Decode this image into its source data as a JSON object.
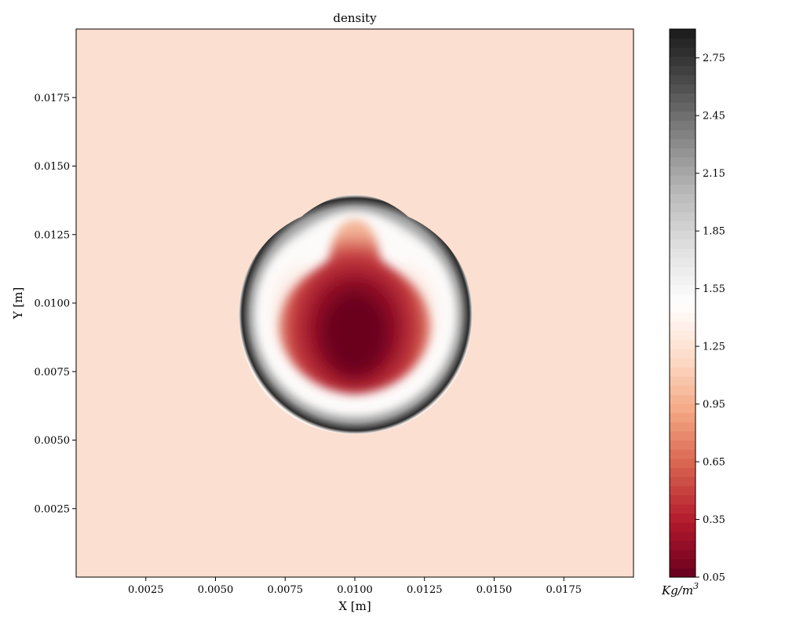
{
  "chart_data": {
    "type": "heatmap",
    "title": "density",
    "xlabel": "X [m]",
    "ylabel": "Y [m]",
    "xlim": [
      0.0,
      0.02
    ],
    "ylim": [
      0.0,
      0.02
    ],
    "x_ticks": [
      0.0025,
      0.005,
      0.0075,
      0.01,
      0.0125,
      0.015,
      0.0175
    ],
    "x_tick_labels": [
      "0.0025",
      "0.0050",
      "0.0075",
      "0.0100",
      "0.0125",
      "0.0150",
      "0.0175"
    ],
    "y_ticks": [
      0.0025,
      0.005,
      0.0075,
      0.01,
      0.0125,
      0.015,
      0.0175
    ],
    "y_tick_labels": [
      "0.0025",
      "0.0050",
      "0.0075",
      "0.0100",
      "0.0125",
      "0.0150",
      "0.0175"
    ],
    "background_value": 1.2,
    "colormap": "RdGy",
    "colorbar": {
      "unit_label": "Kg/m",
      "unit_exponent": "3",
      "range": [
        0.05,
        2.9
      ],
      "levels": 60,
      "ticks": [
        0.05,
        0.35,
        0.65,
        0.95,
        1.25,
        1.55,
        1.85,
        2.15,
        2.45,
        2.75
      ],
      "tick_labels": [
        "0.05",
        "0.35",
        "0.65",
        "0.95",
        "1.25",
        "1.55",
        "1.85",
        "2.15",
        "2.45",
        "2.75"
      ]
    },
    "features": [
      {
        "kind": "outer_shock_ring",
        "center": [
          0.0101,
          0.0095
        ],
        "outer_radius": 0.0042,
        "peak_value": 2.85
      },
      {
        "kind": "low_density_core",
        "center": [
          0.01,
          0.0088
        ],
        "radius": 0.0012,
        "value": 0.05
      },
      {
        "kind": "mushroom_jet",
        "tip": [
          0.0101,
          0.0128
        ],
        "base": [
          0.0101,
          0.0068
        ],
        "value": 0.2
      }
    ]
  }
}
